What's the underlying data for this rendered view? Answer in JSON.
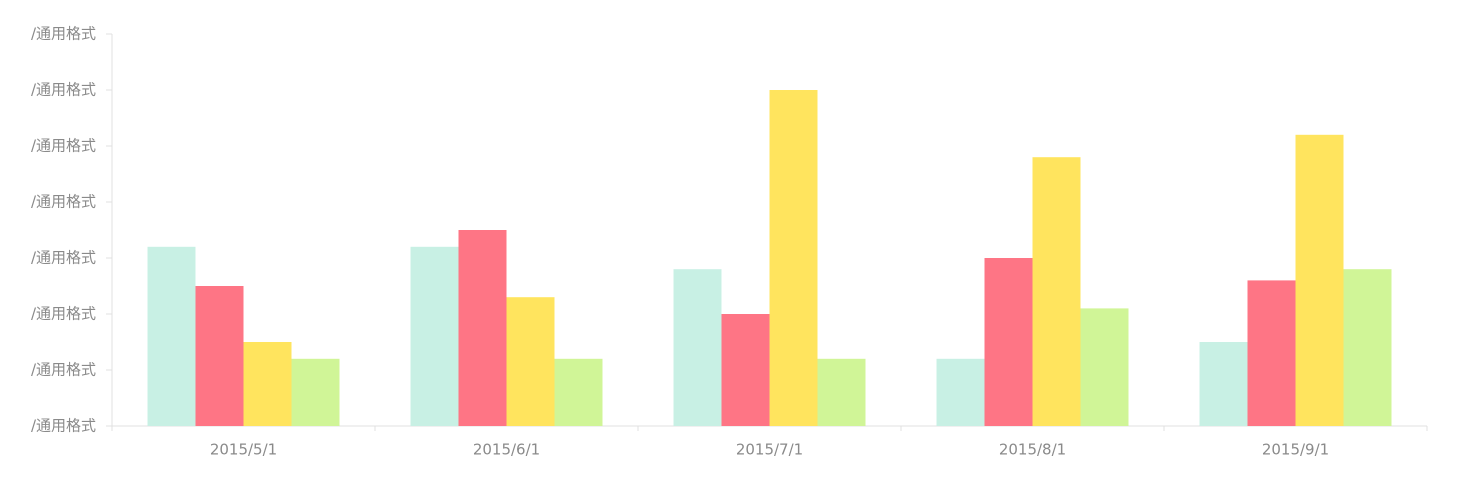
{
  "chart_data": {
    "type": "bar",
    "categories": [
      "2015/5/1",
      "2015/6/1",
      "2015/7/1",
      "2015/8/1",
      "2015/9/1"
    ],
    "series": [
      {
        "color": "#c8f0e4",
        "values": [
          3.2,
          3.2,
          2.8,
          1.2,
          1.5
        ]
      },
      {
        "color": "#fe7585",
        "values": [
          2.5,
          3.5,
          2.0,
          3.0,
          2.6
        ]
      },
      {
        "color": "#ffe45e",
        "values": [
          1.5,
          2.3,
          6.0,
          4.8,
          5.2
        ]
      },
      {
        "color": "#d0f597",
        "values": [
          1.2,
          1.2,
          1.2,
          2.1,
          2.8
        ]
      }
    ],
    "ylim": [
      0,
      7
    ],
    "yticks": [
      {
        "value": 0,
        "label": "/通用格式"
      },
      {
        "value": 1,
        "label": "/通用格式"
      },
      {
        "value": 2,
        "label": "/通用格式"
      },
      {
        "value": 3,
        "label": "/通用格式"
      },
      {
        "value": 4,
        "label": "/通用格式"
      },
      {
        "value": 5,
        "label": "/通用格式"
      },
      {
        "value": 6,
        "label": "/通用格式"
      },
      {
        "value": 7,
        "label": "/通用格式"
      }
    ]
  }
}
